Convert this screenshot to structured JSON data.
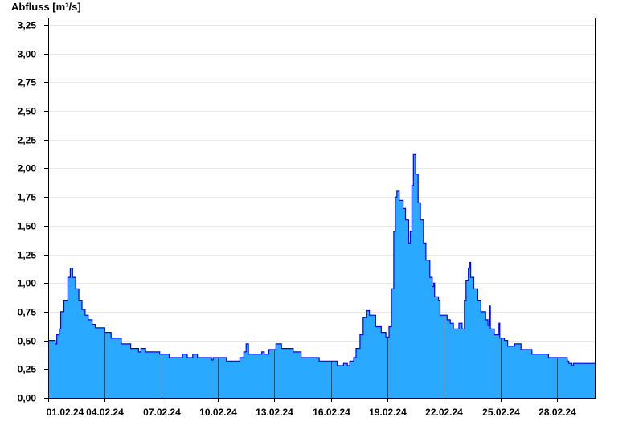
{
  "chart_data": {
    "type": "area",
    "title": "",
    "ylabel": "Abfluss [m³/s]",
    "xlabel": "",
    "ylim": [
      0,
      3.25
    ],
    "xlim": [
      "2024-02-01T00:00",
      "2024-03-01T00:00"
    ],
    "grid": true,
    "step": true,
    "colors": {
      "fill": "#29a9ff",
      "line": "#0000ff"
    },
    "yticks": [
      "0,00",
      "0,25",
      "0,50",
      "0,75",
      "1,00",
      "1,25",
      "1,50",
      "1,75",
      "2,00",
      "2,25",
      "2,50",
      "2,75",
      "3,00",
      "3,25"
    ],
    "xticks": [
      {
        "t": "2024-02-01T00:00",
        "label": "01.02.24"
      },
      {
        "t": "2024-02-04T00:00",
        "label": "04.02.24"
      },
      {
        "t": "2024-02-07T00:00",
        "label": "07.02.24"
      },
      {
        "t": "2024-02-10T00:00",
        "label": "10.02.24"
      },
      {
        "t": "2024-02-13T00:00",
        "label": "13.02.24"
      },
      {
        "t": "2024-02-16T00:00",
        "label": "16.02.24"
      },
      {
        "t": "2024-02-19T00:00",
        "label": "19.02.24"
      },
      {
        "t": "2024-02-22T00:00",
        "label": "22.02.24"
      },
      {
        "t": "2024-02-25T00:00",
        "label": "25.02.24"
      },
      {
        "t": "2024-02-28T00:00",
        "label": "28.02.24"
      }
    ],
    "series": [
      {
        "points": [
          [
            "2024-02-01T00:00",
            0.5
          ],
          [
            "2024-02-01T07:00",
            0.5
          ],
          [
            "2024-02-01T09:00",
            0.47
          ],
          [
            "2024-02-01T11:00",
            0.55
          ],
          [
            "2024-02-01T14:00",
            0.6
          ],
          [
            "2024-02-01T16:00",
            0.75
          ],
          [
            "2024-02-01T20:00",
            0.85
          ],
          [
            "2024-02-02T01:00",
            1.05
          ],
          [
            "2024-02-02T04:00",
            1.13
          ],
          [
            "2024-02-02T07:00",
            1.05
          ],
          [
            "2024-02-02T11:00",
            0.95
          ],
          [
            "2024-02-02T15:00",
            0.85
          ],
          [
            "2024-02-02T19:00",
            0.77
          ],
          [
            "2024-02-02T23:00",
            0.72
          ],
          [
            "2024-02-03T03:00",
            0.68
          ],
          [
            "2024-02-03T08:00",
            0.64
          ],
          [
            "2024-02-03T12:00",
            0.61
          ],
          [
            "2024-02-04T00:00",
            0.57
          ],
          [
            "2024-02-04T08:00",
            0.52
          ],
          [
            "2024-02-04T21:00",
            0.47
          ],
          [
            "2024-02-05T09:00",
            0.43
          ],
          [
            "2024-02-05T19:00",
            0.4
          ],
          [
            "2024-02-05T22:00",
            0.43
          ],
          [
            "2024-02-06T04:00",
            0.4
          ],
          [
            "2024-02-06T22:00",
            0.38
          ],
          [
            "2024-02-07T10:00",
            0.35
          ],
          [
            "2024-02-08T03:00",
            0.38
          ],
          [
            "2024-02-08T09:00",
            0.35
          ],
          [
            "2024-02-08T16:00",
            0.38
          ],
          [
            "2024-02-08T22:00",
            0.35
          ],
          [
            "2024-02-09T16:00",
            0.33
          ],
          [
            "2024-02-09T18:00",
            0.35
          ],
          [
            "2024-02-10T11:00",
            0.32
          ],
          [
            "2024-02-11T04:00",
            0.35
          ],
          [
            "2024-02-11T09:00",
            0.4
          ],
          [
            "2024-02-11T12:00",
            0.47
          ],
          [
            "2024-02-11T15:00",
            0.38
          ],
          [
            "2024-02-12T08:00",
            0.4
          ],
          [
            "2024-02-12T11:00",
            0.38
          ],
          [
            "2024-02-12T17:00",
            0.42
          ],
          [
            "2024-02-13T02:00",
            0.47
          ],
          [
            "2024-02-13T09:00",
            0.43
          ],
          [
            "2024-02-14T00:00",
            0.4
          ],
          [
            "2024-02-14T10:00",
            0.35
          ],
          [
            "2024-02-15T09:00",
            0.32
          ],
          [
            "2024-02-16T08:00",
            0.28
          ],
          [
            "2024-02-16T16:00",
            0.3
          ],
          [
            "2024-02-16T21:00",
            0.28
          ],
          [
            "2024-02-17T00:00",
            0.32
          ],
          [
            "2024-02-17T05:00",
            0.35
          ],
          [
            "2024-02-17T08:00",
            0.43
          ],
          [
            "2024-02-17T13:00",
            0.55
          ],
          [
            "2024-02-17T17:00",
            0.7
          ],
          [
            "2024-02-17T21:00",
            0.76
          ],
          [
            "2024-02-18T01:00",
            0.72
          ],
          [
            "2024-02-18T09:00",
            0.62
          ],
          [
            "2024-02-18T16:00",
            0.57
          ],
          [
            "2024-02-18T22:00",
            0.53
          ],
          [
            "2024-02-19T02:00",
            0.62
          ],
          [
            "2024-02-19T05:00",
            0.95
          ],
          [
            "2024-02-19T08:00",
            1.45
          ],
          [
            "2024-02-19T10:00",
            1.75
          ],
          [
            "2024-02-19T12:00",
            1.8
          ],
          [
            "2024-02-19T15:00",
            1.72
          ],
          [
            "2024-02-19T20:00",
            1.65
          ],
          [
            "2024-02-19T23:00",
            1.55
          ],
          [
            "2024-02-20T03:00",
            1.35
          ],
          [
            "2024-02-20T05:00",
            1.45
          ],
          [
            "2024-02-20T07:00",
            1.85
          ],
          [
            "2024-02-20T09:00",
            2.12
          ],
          [
            "2024-02-20T12:00",
            1.95
          ],
          [
            "2024-02-20T15:00",
            1.7
          ],
          [
            "2024-02-20T18:00",
            1.55
          ],
          [
            "2024-02-20T22:00",
            1.35
          ],
          [
            "2024-02-21T01:00",
            1.2
          ],
          [
            "2024-02-21T06:00",
            1.05
          ],
          [
            "2024-02-21T09:00",
            0.97
          ],
          [
            "2024-02-21T11:00",
            1.0
          ],
          [
            "2024-02-21T12:00",
            0.88
          ],
          [
            "2024-02-21T17:00",
            0.85
          ],
          [
            "2024-02-21T19:00",
            0.72
          ],
          [
            "2024-02-22T04:00",
            0.68
          ],
          [
            "2024-02-22T08:00",
            0.65
          ],
          [
            "2024-02-22T12:00",
            0.6
          ],
          [
            "2024-02-22T19:00",
            0.65
          ],
          [
            "2024-02-22T23:00",
            0.6
          ],
          [
            "2024-02-23T02:00",
            0.85
          ],
          [
            "2024-02-23T04:00",
            1.02
          ],
          [
            "2024-02-23T07:00",
            1.13
          ],
          [
            "2024-02-23T09:00",
            1.18
          ],
          [
            "2024-02-23T10:00",
            1.05
          ],
          [
            "2024-02-23T14:00",
            0.95
          ],
          [
            "2024-02-23T19:00",
            0.85
          ],
          [
            "2024-02-23T23:00",
            0.75
          ],
          [
            "2024-02-24T05:00",
            0.68
          ],
          [
            "2024-02-24T08:00",
            0.63
          ],
          [
            "2024-02-24T10:00",
            0.8
          ],
          [
            "2024-02-24T11:00",
            0.6
          ],
          [
            "2024-02-24T16:00",
            0.55
          ],
          [
            "2024-02-24T22:00",
            0.65
          ],
          [
            "2024-02-24T23:00",
            0.52
          ],
          [
            "2024-02-25T05:00",
            0.5
          ],
          [
            "2024-02-25T09:00",
            0.45
          ],
          [
            "2024-02-25T18:00",
            0.47
          ],
          [
            "2024-02-26T02:00",
            0.42
          ],
          [
            "2024-02-26T16:00",
            0.38
          ],
          [
            "2024-02-27T11:00",
            0.38
          ],
          [
            "2024-02-27T13:00",
            0.35
          ],
          [
            "2024-02-28T13:00",
            0.32
          ],
          [
            "2024-02-28T15:00",
            0.3
          ],
          [
            "2024-02-28T19:00",
            0.28
          ],
          [
            "2024-02-28T21:00",
            0.3
          ],
          [
            "2024-03-01T00:00",
            0.3
          ]
        ]
      }
    ]
  }
}
